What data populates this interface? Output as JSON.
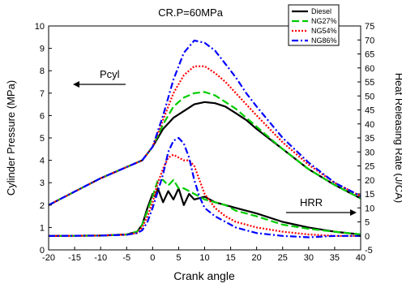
{
  "chart_data": {
    "type": "line",
    "title": "CR.P=60MPa",
    "xlabel": "Crank angle",
    "ylabel_left": "Cylinder Pressure (MPa)",
    "ylabel_right": "Heat Releasing Rate (J/CA)",
    "xlim": [
      -20,
      40
    ],
    "ylim_left": [
      0,
      10
    ],
    "ylim_right": [
      -5,
      75
    ],
    "x_ticks": [
      -20,
      -15,
      -10,
      -5,
      0,
      5,
      10,
      15,
      20,
      25,
      30,
      35,
      40
    ],
    "y_left_ticks": [
      0,
      1,
      2,
      3,
      4,
      5,
      6,
      7,
      8,
      9,
      10
    ],
    "y_right_ticks": [
      -5,
      0,
      5,
      10,
      15,
      20,
      25,
      30,
      35,
      40,
      45,
      50,
      55,
      60,
      65,
      70,
      75
    ],
    "grid": false,
    "legend_position": "top-right",
    "annotations": [
      {
        "text": "Pcyl",
        "arrow": "left"
      },
      {
        "text": "HRR",
        "arrow": "right"
      }
    ],
    "series": [
      {
        "name": "Diesel",
        "color": "#000000",
        "dash": "solid",
        "axis": "left",
        "x": [
          -20,
          -15,
          -10,
          -5,
          -2,
          0,
          2,
          4,
          6,
          8,
          10,
          12,
          14,
          16,
          18,
          20,
          25,
          30,
          35,
          40
        ],
        "y": [
          2.0,
          2.6,
          3.2,
          3.7,
          4.0,
          4.6,
          5.4,
          5.9,
          6.2,
          6.5,
          6.6,
          6.55,
          6.4,
          6.1,
          5.8,
          5.4,
          4.5,
          3.6,
          2.9,
          2.3
        ]
      },
      {
        "name": "NG27%",
        "color": "#00cc00",
        "dash": "longdash",
        "axis": "left",
        "x": [
          -20,
          -15,
          -10,
          -5,
          -2,
          0,
          2,
          4,
          6,
          8,
          10,
          12,
          14,
          16,
          18,
          20,
          25,
          30,
          35,
          40
        ],
        "y": [
          2.0,
          2.6,
          3.2,
          3.7,
          4.0,
          4.6,
          5.6,
          6.4,
          6.8,
          7.0,
          7.05,
          6.9,
          6.6,
          6.3,
          5.9,
          5.5,
          4.5,
          3.6,
          2.9,
          2.3
        ]
      },
      {
        "name": "NG54%",
        "color": "#ff0000",
        "dash": "dot",
        "axis": "left",
        "x": [
          -20,
          -15,
          -10,
          -5,
          -2,
          0,
          2,
          4,
          6,
          8,
          10,
          12,
          14,
          16,
          18,
          20,
          25,
          30,
          35,
          40
        ],
        "y": [
          2.0,
          2.6,
          3.2,
          3.7,
          4.0,
          4.6,
          5.8,
          7.0,
          7.8,
          8.2,
          8.2,
          7.9,
          7.5,
          7.0,
          6.5,
          6.0,
          4.8,
          3.8,
          3.0,
          2.4
        ]
      },
      {
        "name": "NG86%",
        "color": "#0000ff",
        "dash": "dashdot",
        "axis": "left",
        "x": [
          -20,
          -15,
          -10,
          -5,
          -2,
          0,
          2,
          4,
          6,
          8,
          10,
          12,
          14,
          16,
          18,
          20,
          25,
          30,
          35,
          40
        ],
        "y": [
          2.0,
          2.6,
          3.2,
          3.7,
          4.0,
          4.6,
          6.0,
          7.6,
          8.8,
          9.35,
          9.25,
          8.9,
          8.3,
          7.7,
          7.0,
          6.4,
          5.0,
          3.9,
          3.0,
          2.4
        ]
      },
      {
        "name": "Diesel",
        "color": "#000000",
        "dash": "solid",
        "axis": "right",
        "x": [
          -20,
          -10,
          -5,
          -3,
          -2,
          -1,
          0,
          0.5,
          1,
          2,
          3,
          4,
          5,
          6,
          7,
          8,
          10,
          12,
          14,
          16,
          18,
          20,
          25,
          30,
          35,
          40
        ],
        "y": [
          0,
          0.1,
          0.5,
          1.5,
          4,
          10,
          15,
          14,
          17,
          12,
          16,
          13,
          17,
          11,
          15,
          13,
          14,
          12,
          11,
          10,
          9,
          8,
          5,
          3,
          1.5,
          0.5
        ]
      },
      {
        "name": "NG27%",
        "color": "#00cc00",
        "dash": "longdash",
        "axis": "right",
        "x": [
          -20,
          -10,
          -5,
          -3,
          -2,
          -1,
          0,
          1,
          2,
          3,
          4,
          5,
          6,
          7,
          8,
          10,
          12,
          14,
          16,
          18,
          20,
          25,
          30,
          35,
          40
        ],
        "y": [
          0,
          0.1,
          0.5,
          1.5,
          4,
          9,
          14,
          20,
          20,
          18,
          20,
          17,
          17,
          16,
          15,
          13,
          12,
          11,
          9,
          8,
          7,
          4,
          2.5,
          1.5,
          0.5
        ]
      },
      {
        "name": "NG54%",
        "color": "#ff0000",
        "dash": "dot",
        "axis": "right",
        "x": [
          -20,
          -10,
          -5,
          -3,
          -2,
          -1,
          0,
          1,
          2,
          3,
          4,
          5,
          6,
          7,
          8,
          9,
          10,
          12,
          14,
          16,
          18,
          20,
          25,
          30,
          35,
          40
        ],
        "y": [
          0,
          0.1,
          0.5,
          1,
          3,
          7,
          12,
          19,
          24,
          28,
          29,
          28,
          27,
          27,
          25,
          20,
          15,
          10,
          7,
          5,
          4,
          3,
          1.5,
          0.5,
          0,
          0
        ]
      },
      {
        "name": "NG86%",
        "color": "#0000ff",
        "dash": "dashdot",
        "axis": "right",
        "x": [
          -20,
          -10,
          -5,
          -3,
          -2,
          -1,
          0,
          1,
          2,
          3,
          4,
          5,
          6,
          7,
          8,
          9,
          10,
          12,
          14,
          16,
          18,
          20,
          25,
          30,
          35,
          40
        ],
        "y": [
          0,
          0.1,
          0.4,
          1,
          2,
          5,
          10,
          16,
          22,
          30,
          34,
          35,
          33,
          28,
          20,
          14,
          10,
          7,
          5,
          3,
          2,
          1,
          0,
          -0.5,
          0,
          0
        ]
      }
    ]
  }
}
